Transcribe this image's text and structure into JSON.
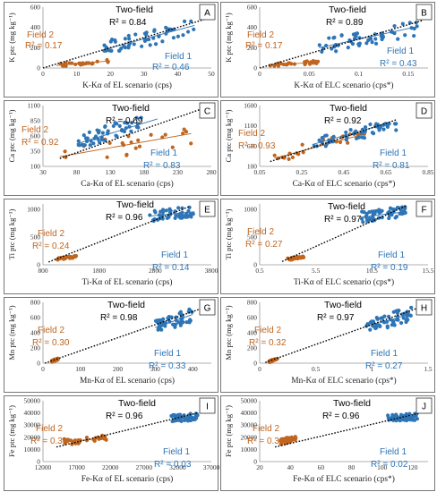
{
  "colors": {
    "field1": "#2E75B6",
    "field2": "#C0651F",
    "twofield": "#000000"
  },
  "labels": {
    "twofield": "Two-field",
    "field1": "Field 1",
    "field2": "Field 2"
  },
  "chart_data": [
    {
      "panel": "A",
      "type": "scatter",
      "ylabel": "K ptc (mg kg⁻¹)",
      "xlabel": "K-Kα of EL scenario (cps)",
      "xlim": [
        0,
        50
      ],
      "ylim": [
        0,
        600
      ],
      "xticks": [
        0,
        10,
        20,
        30,
        40,
        50
      ],
      "yticks": [
        0,
        200,
        400,
        600
      ],
      "r2": {
        "twofield": "R² = 0.84",
        "field1": "R² = 0.46",
        "field2": "R² = 0.17"
      },
      "field1": {
        "xrange": [
          18,
          46
        ],
        "yrange": [
          170,
          460
        ],
        "n": 55,
        "fit": [
          [
            18,
            180
          ],
          [
            45,
            420
          ]
        ]
      },
      "field2": {
        "xrange": [
          4,
          20
        ],
        "yrange": [
          20,
          80
        ],
        "n": 28,
        "fit": [
          [
            4,
            25
          ],
          [
            20,
            70
          ]
        ]
      },
      "twofield": {
        "fit": [
          [
            0,
            0
          ],
          [
            48,
            480
          ]
        ]
      }
    },
    {
      "panel": "B",
      "type": "scatter",
      "ylabel": "K ptc (mg kg⁻¹)",
      "xlabel": "K-Kα of ELC scenario (cps*)",
      "xlim": [
        0,
        0.17
      ],
      "ylim": [
        0,
        600
      ],
      "xticks": [
        0,
        0.05,
        0.1,
        0.15
      ],
      "yticks": [
        0,
        200,
        400,
        600
      ],
      "r2": {
        "twofield": "R² = 0.89",
        "field1": "R² = 0.43",
        "field2": "R² = 0.17"
      },
      "field1": {
        "xrange": [
          0.06,
          0.16
        ],
        "yrange": [
          160,
          460
        ],
        "n": 55,
        "fit": [
          [
            0.06,
            200
          ],
          [
            0.16,
            410
          ]
        ]
      },
      "field2": {
        "xrange": [
          0.01,
          0.06
        ],
        "yrange": [
          20,
          80
        ],
        "n": 28,
        "fit": [
          [
            0.01,
            25
          ],
          [
            0.06,
            60
          ]
        ]
      },
      "twofield": {
        "fit": [
          [
            0,
            0
          ],
          [
            0.165,
            470
          ]
        ]
      }
    },
    {
      "panel": "C",
      "type": "scatter",
      "ylabel": "Ca ptc (mg kg⁻¹)",
      "xlabel": "Ca-Kα of EL scenario (cps)",
      "xlim": [
        30,
        280
      ],
      "ylim": [
        100,
        1100
      ],
      "xticks": [
        30,
        80,
        130,
        180,
        230,
        280
      ],
      "yticks": [
        100,
        350,
        600,
        850,
        1100
      ],
      "r2": {
        "twofield": "R² = 0.69",
        "field1": "R² = 0.83",
        "field2": "R² = 0.92"
      },
      "field1": {
        "xrange": [
          80,
          180
        ],
        "yrange": [
          450,
          900
        ],
        "n": 50,
        "fit": [
          [
            80,
            470
          ],
          [
            200,
            880
          ]
        ]
      },
      "field2": {
        "xrange": [
          55,
          250
        ],
        "yrange": [
          250,
          900
        ],
        "n": 25,
        "fit": [
          [
            55,
            260
          ],
          [
            250,
            640
          ]
        ]
      },
      "twofield": {
        "fit": [
          [
            55,
            230
          ],
          [
            280,
            1100
          ]
        ]
      }
    },
    {
      "panel": "D",
      "type": "scatter",
      "ylabel": "Ca ptc (mg kg⁻¹)",
      "xlabel": "Ca-Kα of ELC scenario (cps*)",
      "xlim": [
        0.05,
        0.85
      ],
      "ylim": [
        100,
        1600
      ],
      "xticks": [
        0.05,
        0.25,
        0.45,
        0.65,
        0.85
      ],
      "yticks": [
        100,
        600,
        1100,
        1600
      ],
      "r2": {
        "twofield": "R² = 0.92",
        "field1": "R² = 0.81",
        "field2": "R² = 0.93"
      },
      "field1": {
        "xrange": [
          0.3,
          0.7
        ],
        "yrange": [
          600,
          1150
        ],
        "n": 50,
        "fit": [
          [
            0.3,
            640
          ],
          [
            0.65,
            1150
          ]
        ]
      },
      "field2": {
        "xrange": [
          0.12,
          0.55
        ],
        "yrange": [
          280,
          900
        ],
        "n": 25,
        "fit": [
          [
            0.12,
            300
          ],
          [
            0.55,
            900
          ]
        ]
      },
      "twofield": {
        "fit": [
          [
            0.1,
            220
          ],
          [
            0.7,
            1250
          ]
        ]
      }
    },
    {
      "panel": "E",
      "type": "scatter",
      "ylabel": "Ti ptc (mg kg⁻¹)",
      "xlabel": "Ti-Kα of EL scenario (cps)",
      "xlim": [
        800,
        3800
      ],
      "ylim": [
        0,
        1100
      ],
      "xticks": [
        800,
        1800,
        2800,
        3800
      ],
      "yticks": [
        0,
        500,
        1000
      ],
      "r2": {
        "twofield": "R² = 0.96",
        "field1": "R² = 0.14",
        "field2": "R² = 0.24"
      },
      "field1": {
        "xrange": [
          2700,
          3500
        ],
        "yrange": [
          750,
          1100
        ],
        "n": 55,
        "fit": [
          [
            2700,
            880
          ],
          [
            3500,
            960
          ]
        ]
      },
      "field2": {
        "xrange": [
          1050,
          1400
        ],
        "yrange": [
          90,
          160
        ],
        "n": 28,
        "fit": [
          [
            1050,
            105
          ],
          [
            1400,
            150
          ]
        ]
      },
      "twofield": {
        "fit": [
          [
            900,
            50
          ],
          [
            3400,
            1050
          ]
        ]
      }
    },
    {
      "panel": "F",
      "type": "scatter",
      "ylabel": "Ti ptc (mg kg⁻¹)",
      "xlabel": "Ti-Kα of ELC scenario (cps*)",
      "xlim": [
        0.5,
        15.5
      ],
      "ylim": [
        0,
        1100
      ],
      "xticks": [
        0.5,
        5.5,
        10.5,
        15.5
      ],
      "yticks": [
        0,
        500,
        1000
      ],
      "r2": {
        "twofield": "R² = 0.97",
        "field1": "R² = 0.19",
        "field2": "R² = 0.27"
      },
      "field1": {
        "xrange": [
          9.5,
          13.5
        ],
        "yrange": [
          750,
          1100
        ],
        "n": 55,
        "fit": [
          [
            9.5,
            860
          ],
          [
            13.5,
            960
          ]
        ]
      },
      "field2": {
        "xrange": [
          3.0,
          4.5
        ],
        "yrange": [
          90,
          160
        ],
        "n": 28,
        "fit": [
          [
            3.0,
            100
          ],
          [
            4.5,
            150
          ]
        ]
      },
      "twofield": {
        "fit": [
          [
            2.5,
            60
          ],
          [
            13.5,
            1060
          ]
        ]
      }
    },
    {
      "panel": "G",
      "type": "scatter",
      "ylabel": "Mn ptc (mg kg⁻¹)",
      "xlabel": "Mn-Kα of EL scenario (cps)",
      "xlim": [
        0,
        450
      ],
      "ylim": [
        0,
        800
      ],
      "xticks": [
        0,
        100,
        200,
        300,
        400
      ],
      "yticks": [
        0,
        200,
        400,
        600,
        800
      ],
      "r2": {
        "twofield": "R² = 0.98",
        "field1": "R² = 0.33",
        "field2": "R² = 0.30"
      },
      "field1": {
        "xrange": [
          300,
          400
        ],
        "yrange": [
          440,
          760
        ],
        "n": 55,
        "fit": [
          [
            300,
            470
          ],
          [
            400,
            640
          ]
        ]
      },
      "field2": {
        "xrange": [
          20,
          40
        ],
        "yrange": [
          15,
          60
        ],
        "n": 28,
        "fit": [
          [
            20,
            20
          ],
          [
            40,
            55
          ]
        ]
      },
      "twofield": {
        "fit": [
          [
            5,
            0
          ],
          [
            430,
            730
          ]
        ]
      }
    },
    {
      "panel": "H",
      "type": "scatter",
      "ylabel": "Mn ptc (mg kg⁻¹)",
      "xlabel": "Mn-Kα of ELC scenario (cps*)",
      "xlim": [
        0,
        1.5
      ],
      "ylim": [
        0,
        800
      ],
      "xticks": [
        0,
        0.5,
        1,
        1.5
      ],
      "yticks": [
        0,
        200,
        400,
        600,
        800
      ],
      "r2": {
        "twofield": "R² = 0.97",
        "field1": "R² = 0.27",
        "field2": "R² = 0.32"
      },
      "field1": {
        "xrange": [
          0.95,
          1.35
        ],
        "yrange": [
          440,
          780
        ],
        "n": 55,
        "fit": [
          [
            0.95,
            480
          ],
          [
            1.35,
            650
          ]
        ]
      },
      "field2": {
        "xrange": [
          0.08,
          0.16
        ],
        "yrange": [
          15,
          60
        ],
        "n": 28,
        "fit": [
          [
            0.08,
            20
          ],
          [
            0.16,
            55
          ]
        ]
      },
      "twofield": {
        "fit": [
          [
            0.05,
            10
          ],
          [
            1.4,
            720
          ]
        ]
      }
    },
    {
      "panel": "I",
      "type": "scatter",
      "ylabel": "Fe ptc (mg kg⁻¹)",
      "xlabel": "Fe-Kα of EL scenario (cps)",
      "xlim": [
        12000,
        37000
      ],
      "ylim": [
        0,
        50000
      ],
      "xticks": [
        12000,
        17000,
        22000,
        27000,
        32000,
        37000
      ],
      "yticks": [
        0,
        10000,
        20000,
        30000,
        40000,
        50000
      ],
      "r2": {
        "twofield": "R² = 0.96",
        "field1": "R² = 0.03",
        "field2": "R² = 0.30"
      },
      "field1": {
        "xrange": [
          31000,
          35000
        ],
        "yrange": [
          31000,
          42000
        ],
        "n": 55,
        "fit": [
          [
            31000,
            36000
          ],
          [
            35000,
            36600
          ]
        ]
      },
      "field2": {
        "xrange": [
          15000,
          21500
        ],
        "yrange": [
          13000,
          22000
        ],
        "n": 30,
        "fit": [
          [
            15000,
            16000
          ],
          [
            21500,
            19500
          ]
        ]
      },
      "twofield": {
        "fit": [
          [
            14000,
            12000
          ],
          [
            35000,
            40000
          ]
        ]
      }
    },
    {
      "panel": "J",
      "type": "scatter",
      "ylabel": "Fe ptc (mg kg⁻¹)",
      "xlabel": "Fe-Kα of ELC scenario (cps*)",
      "xlim": [
        20,
        130
      ],
      "ylim": [
        0,
        50000
      ],
      "xticks": [
        20,
        40,
        60,
        80,
        100,
        120
      ],
      "yticks": [
        0,
        10000,
        20000,
        30000,
        40000,
        50000
      ],
      "r2": {
        "twofield": "R² = 0.96",
        "field1": "R² = 0.02",
        "field2": "R² = 0.35"
      },
      "field1": {
        "xrange": [
          103,
          123
        ],
        "yrange": [
          31000,
          42000
        ],
        "n": 55,
        "fit": [
          [
            103,
            36000
          ],
          [
            123,
            36500
          ]
        ]
      },
      "field2": {
        "xrange": [
          33,
          45
        ],
        "yrange": [
          14000,
          22000
        ],
        "n": 30,
        "fit": [
          [
            33,
            16000
          ],
          [
            45,
            19500
          ]
        ]
      },
      "twofield": {
        "fit": [
          [
            30,
            12000
          ],
          [
            125,
            40000
          ]
        ]
      }
    }
  ]
}
